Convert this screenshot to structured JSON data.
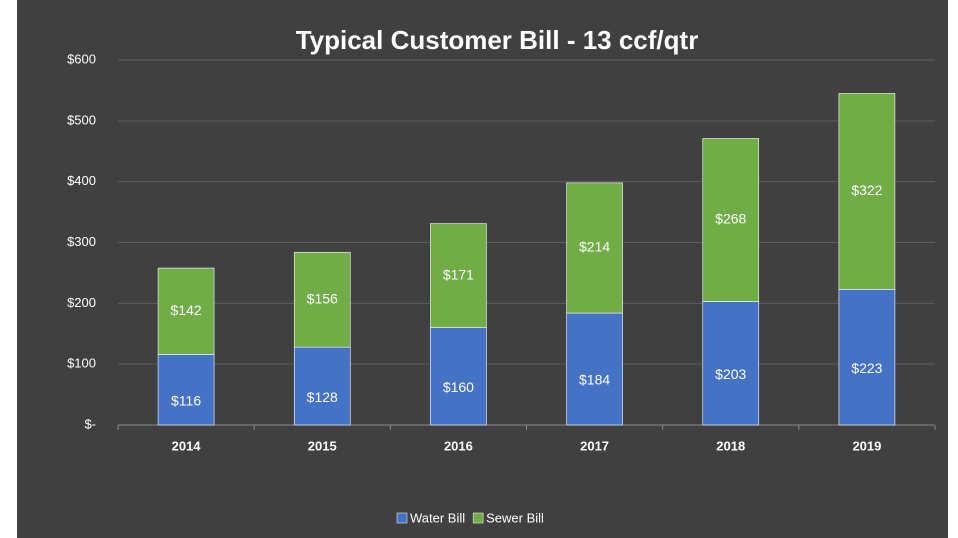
{
  "chart_data": {
    "type": "stacked_bar",
    "title": "Typical Customer Bill - 13 ccf/qtr",
    "categories": [
      "2014",
      "2015",
      "2016",
      "2017",
      "2018",
      "2019"
    ],
    "series": [
      {
        "name": "Water Bill",
        "color": "#4472c4",
        "values": [
          116,
          128,
          160,
          184,
          203,
          223
        ],
        "value_labels": [
          "$116",
          "$128",
          "$160",
          "$184",
          "$203",
          "$223"
        ]
      },
      {
        "name": "Sewer Bill",
        "color": "#70ad47",
        "values": [
          142,
          156,
          171,
          214,
          268,
          322
        ],
        "value_labels": [
          "$142",
          "$156",
          "$171",
          "$214",
          "$268",
          "$322"
        ]
      }
    ],
    "ylim": [
      0,
      600
    ],
    "yticks": [
      {
        "value": 0,
        "label": "$-"
      },
      {
        "value": 100,
        "label": "$100"
      },
      {
        "value": 200,
        "label": "$200"
      },
      {
        "value": 300,
        "label": "$300"
      },
      {
        "value": 400,
        "label": "$400"
      },
      {
        "value": 500,
        "label": "$500"
      },
      {
        "value": 600,
        "label": "$600"
      }
    ],
    "grid": true,
    "legend": "bottom"
  }
}
